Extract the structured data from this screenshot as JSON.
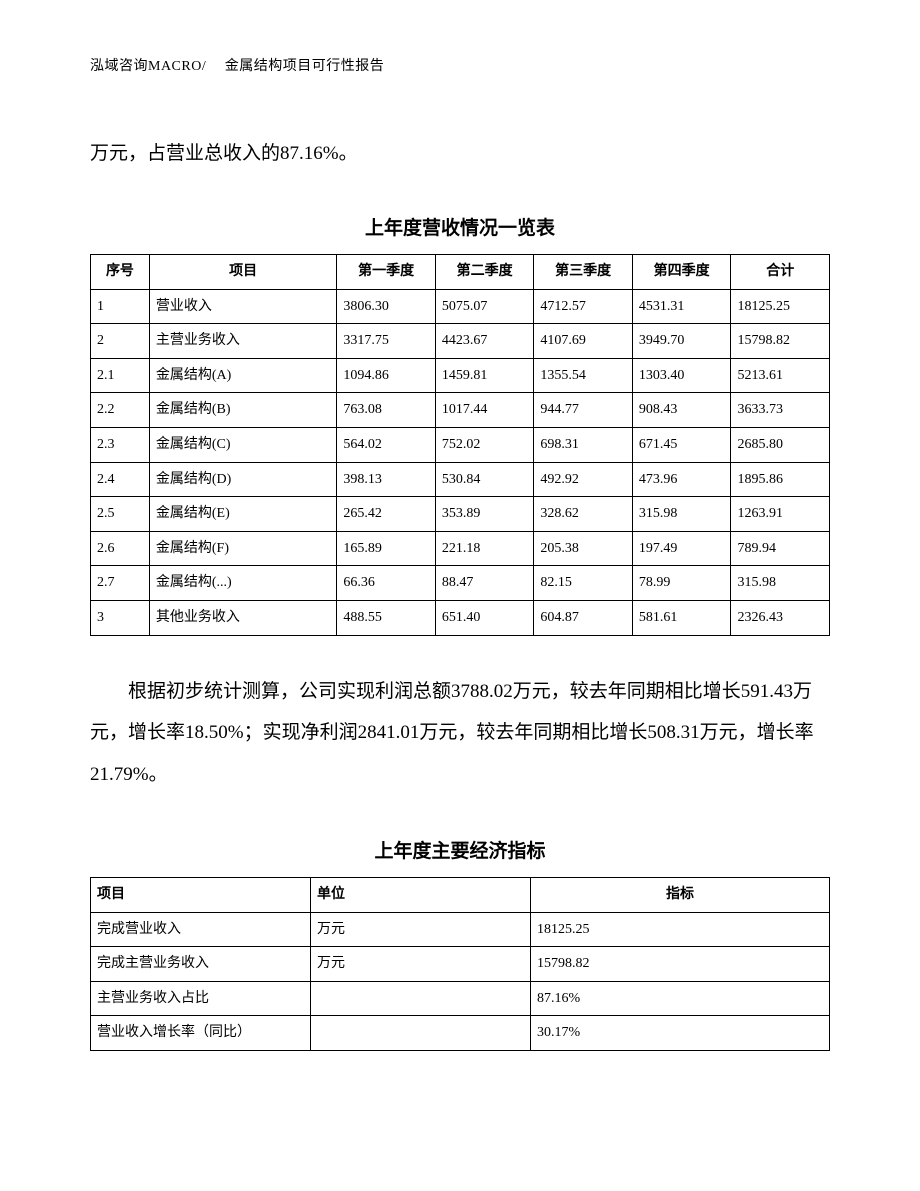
{
  "header": "泓域咨询MACRO/　 金属结构项目可行性报告",
  "intro": "万元，占营业总收入的87.16%。",
  "table1": {
    "title": "上年度营收情况一览表",
    "headers": [
      "序号",
      "项目",
      "第一季度",
      "第二季度",
      "第三季度",
      "第四季度",
      "合计"
    ],
    "rows": [
      [
        "1",
        "营业收入",
        "3806.30",
        "5075.07",
        "4712.57",
        "4531.31",
        "18125.25"
      ],
      [
        "2",
        "主营业务收入",
        "3317.75",
        "4423.67",
        "4107.69",
        "3949.70",
        "15798.82"
      ],
      [
        "2.1",
        "金属结构(A)",
        "1094.86",
        "1459.81",
        "1355.54",
        "1303.40",
        "5213.61"
      ],
      [
        "2.2",
        "金属结构(B)",
        "763.08",
        "1017.44",
        "944.77",
        "908.43",
        "3633.73"
      ],
      [
        "2.3",
        "金属结构(C)",
        "564.02",
        "752.02",
        "698.31",
        "671.45",
        "2685.80"
      ],
      [
        "2.4",
        "金属结构(D)",
        "398.13",
        "530.84",
        "492.92",
        "473.96",
        "1895.86"
      ],
      [
        "2.5",
        "金属结构(E)",
        "265.42",
        "353.89",
        "328.62",
        "315.98",
        "1263.91"
      ],
      [
        "2.6",
        "金属结构(F)",
        "165.89",
        "221.18",
        "205.38",
        "197.49",
        "789.94"
      ],
      [
        "2.7",
        "金属结构(...)",
        "66.36",
        "88.47",
        "82.15",
        "78.99",
        "315.98"
      ],
      [
        "3",
        "其他业务收入",
        "488.55",
        "651.40",
        "604.87",
        "581.61",
        "2326.43"
      ]
    ]
  },
  "paragraph": "根据初步统计测算，公司实现利润总额3788.02万元，较去年同期相比增长591.43万元，增长率18.50%；实现净利润2841.01万元，较去年同期相比增长508.31万元，增长率21.79%。",
  "table2": {
    "title": "上年度主要经济指标",
    "headers": [
      "项目",
      "单位",
      "指标"
    ],
    "rows": [
      [
        "完成营业收入",
        "万元",
        "18125.25"
      ],
      [
        "完成主营业务收入",
        "万元",
        "15798.82"
      ],
      [
        "主营业务收入占比",
        "",
        "87.16%"
      ],
      [
        "营业收入增长率（同比）",
        "",
        "30.17%"
      ]
    ]
  }
}
